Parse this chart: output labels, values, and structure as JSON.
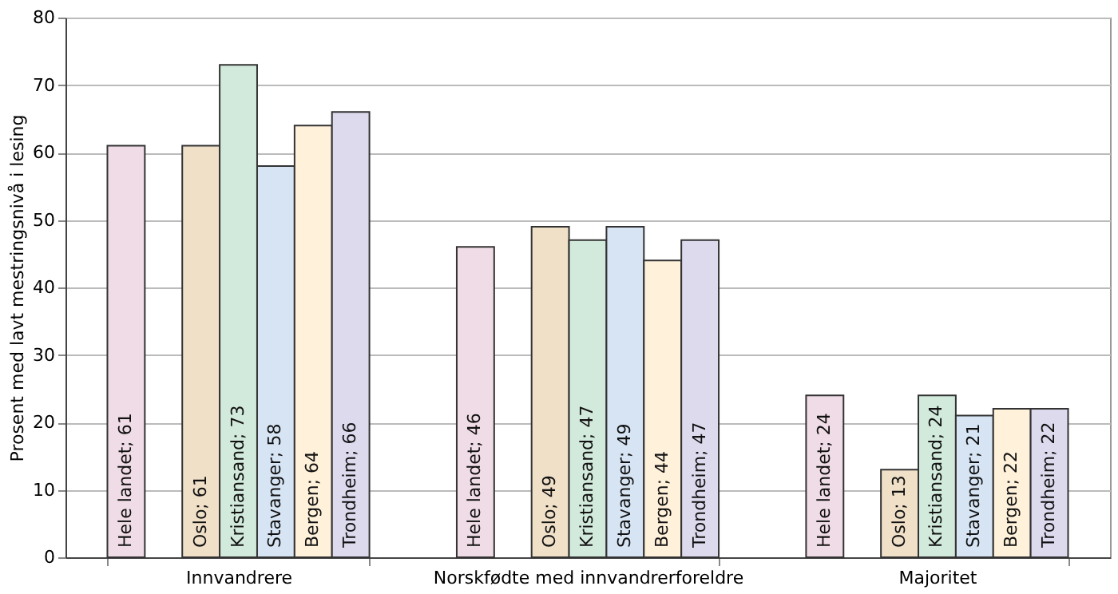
{
  "chart_data": {
    "type": "bar",
    "ylabel": "Prosent med lavt mestringsnivå i lesing",
    "categories": [
      "Innvandrere",
      "Norskfødte med innvandrerforeldre",
      "Majoritet"
    ],
    "series": [
      {
        "name": "Hele landet",
        "color": "#f0dce6",
        "values": [
          61,
          46,
          24
        ],
        "value_labels": [
          "; 61",
          "; 46",
          "; 24"
        ]
      },
      {
        "name": "Oslo",
        "color": "#f0e0c8",
        "values": [
          61,
          49,
          13
        ],
        "value_labels": [
          "; 61",
          "; 49",
          "; 13"
        ]
      },
      {
        "name": "Kristiansand",
        "color": "#d2eadc",
        "values": [
          73,
          47,
          24
        ],
        "value_labels": [
          "; 73",
          "; 47",
          "; 24"
        ]
      },
      {
        "name": "Stavanger",
        "color": "#d6e4f4",
        "values": [
          58,
          49,
          21
        ],
        "value_labels": [
          "; 58",
          "; 49",
          "; 21"
        ]
      },
      {
        "name": "Bergen",
        "color": "#fff1da",
        "values": [
          64,
          44,
          22
        ],
        "value_labels": [
          "; 64",
          "; 44",
          "; 22"
        ]
      },
      {
        "name": "Trondheim",
        "color": "#dedaee",
        "values": [
          66,
          47,
          22
        ],
        "value_labels": [
          "; 66",
          "; 47",
          "; 22"
        ]
      }
    ],
    "ylim": [
      0,
      80
    ],
    "yticks": [
      0,
      10,
      20,
      30,
      40,
      50,
      60,
      70,
      80
    ],
    "grid": "y",
    "legend": false
  }
}
